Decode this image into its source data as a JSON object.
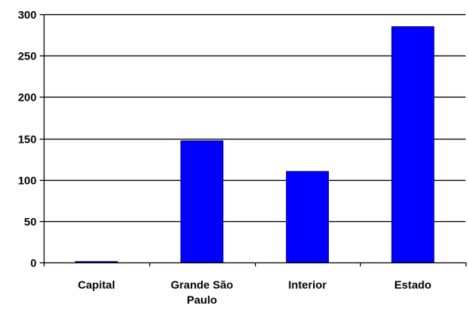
{
  "chart_data": {
    "type": "bar",
    "categories": [
      "Capital",
      "Grande São Paulo",
      "Interior",
      "Estado"
    ],
    "category_label_lines": [
      [
        "Capital"
      ],
      [
        "Grande São",
        "Paulo"
      ],
      [
        "Interior"
      ],
      [
        "Estado"
      ]
    ],
    "values": [
      1,
      147,
      110,
      285
    ],
    "yticks": [
      "0",
      "50",
      "100",
      "150",
      "200",
      "250",
      "300"
    ],
    "ylim": [
      0,
      300
    ],
    "grid": true,
    "colors": {
      "bar_fill": "#0000ff",
      "bar_stroke": "#000080",
      "grid": "#000000",
      "axis": "#000000"
    }
  }
}
